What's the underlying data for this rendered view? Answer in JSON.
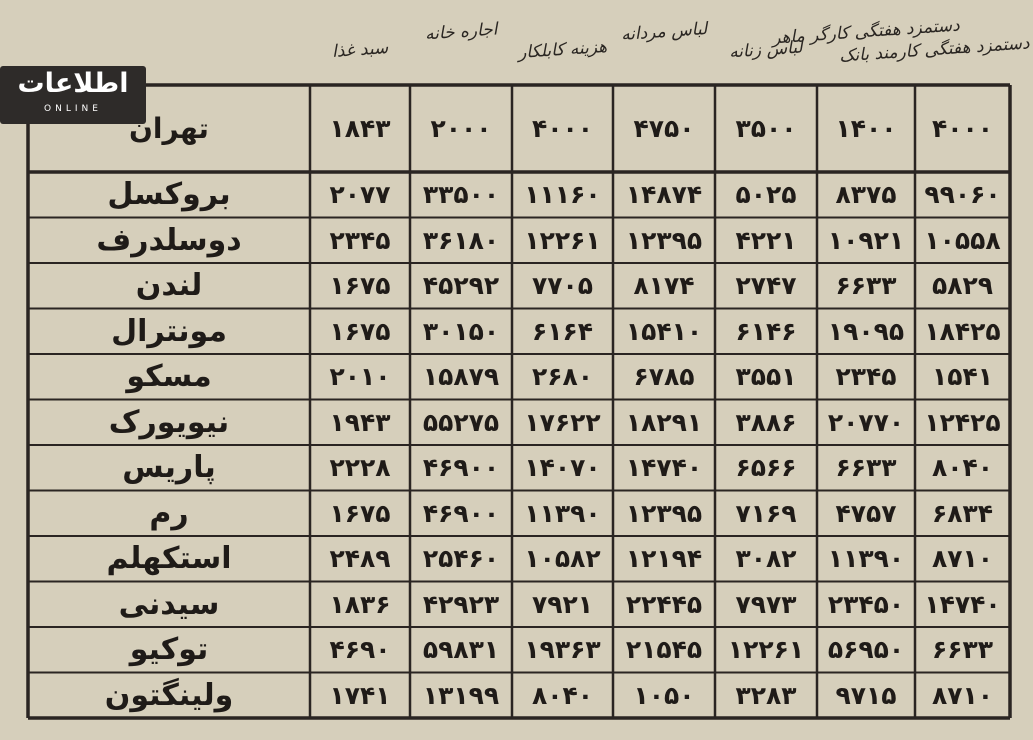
{
  "logo": {
    "title": "اطلاعات",
    "subtitle": "ONLINE"
  },
  "column_headings": [
    "سبد غذا",
    "اجاره خانه",
    "هزینه کابلکار",
    "لباس مردانه",
    "لباس زنانه",
    "دستمزد هفتگی کارگر ماهر",
    "دستمزد هفتگی کارمند بانک"
  ],
  "table": {
    "header": [
      "تهران",
      "۱۸۴۳",
      "۲۰۰۰",
      "۴۰۰۰",
      "۴۷۵۰",
      "۳۵۰۰",
      "۱۴۰۰",
      "۴۰۰۰"
    ],
    "rows": [
      [
        "بروکسل",
        "۲۰۷۷",
        "۳۳۵۰۰",
        "۱۱۱۶۰",
        "۱۴۸۷۴",
        "۵۰۲۵",
        "۸۳۷۵",
        "۹۹۰۶۰"
      ],
      [
        "دوسلدرف",
        "۲۳۴۵",
        "۳۶۱۸۰",
        "۱۲۲۶۱",
        "۱۲۳۹۵",
        "۴۲۲۱",
        "۱۰۹۲۱",
        "۱۰۵۵۸"
      ],
      [
        "لندن",
        "۱۶۷۵",
        "۴۵۲۹۲",
        "۷۷۰۵",
        "۸۱۷۴",
        "۲۷۴۷",
        "۶۶۳۳",
        "۵۸۲۹"
      ],
      [
        "مونترال",
        "۱۶۷۵",
        "۳۰۱۵۰",
        "۶۱۶۴",
        "۱۵۴۱۰",
        "۶۱۴۶",
        "۱۹۰۹۵",
        "۱۸۴۲۵"
      ],
      [
        "مسکو",
        "۲۰۱۰",
        "۱۵۸۷۹",
        "۲۶۸۰",
        "۶۷۸۵",
        "۳۵۵۱",
        "۲۳۴۵",
        "۱۵۴۱"
      ],
      [
        "نیویورک",
        "۱۹۴۳",
        "۵۵۲۷۵",
        "۱۷۶۲۲",
        "۱۸۲۹۱",
        "۳۸۸۶",
        "۲۰۷۷۰",
        "۱۲۴۲۵"
      ],
      [
        "پاریس",
        "۲۲۲۸",
        "۴۶۹۰۰",
        "۱۴۰۷۰",
        "۱۴۷۴۰",
        "۶۵۶۶",
        "۶۶۳۳",
        "۸۰۴۰"
      ],
      [
        "رم",
        "۱۶۷۵",
        "۴۶۹۰۰",
        "۱۱۳۹۰",
        "۱۲۳۹۵",
        "۷۱۶۹",
        "۴۷۵۷",
        "۶۸۳۴"
      ],
      [
        "استکهلم",
        "۲۴۸۹",
        "۲۵۴۶۰",
        "۱۰۵۸۲",
        "۱۲۱۹۴",
        "۳۰۸۲",
        "۱۱۳۹۰",
        "۸۷۱۰"
      ],
      [
        "سیدنی",
        "۱۸۳۶",
        "۴۲۹۲۳",
        "۷۹۲۱",
        "۲۲۴۴۵",
        "۷۹۷۳",
        "۲۳۴۵۰",
        "۱۴۷۴۰"
      ],
      [
        "توکیو",
        "۴۶۹۰",
        "۵۹۸۳۱",
        "۱۹۳۶۳",
        "۲۱۵۴۵",
        "۱۲۲۶۱",
        "۵۶۹۵۰",
        "۶۶۳۳"
      ],
      [
        "ولینگتون",
        "۱۷۴۱",
        "۱۳۱۹۹",
        "۸۰۴۰",
        "۱۰۵۰",
        "۳۲۸۳",
        "۹۷۱۵",
        "۸۷۱۰"
      ]
    ]
  }
}
